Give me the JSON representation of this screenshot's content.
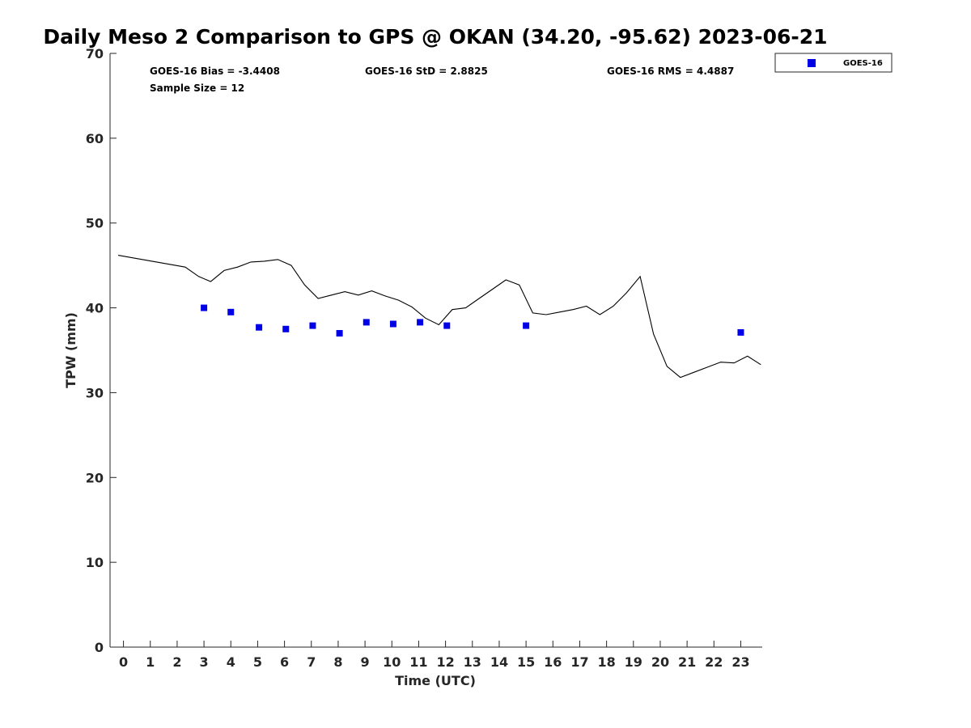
{
  "chart_data": {
    "type": "scatter",
    "title": "Daily Meso 2 Comparison to GPS @ OKAN (34.20, -95.62) 2023-06-21",
    "xlabel": "Time (UTC)",
    "ylabel": "TPW (mm)",
    "xlim": [
      -0.5,
      23.8
    ],
    "ylim": [
      0,
      70
    ],
    "x_ticks": [
      0,
      1,
      2,
      3,
      4,
      5,
      6,
      7,
      8,
      9,
      10,
      11,
      12,
      13,
      14,
      15,
      16,
      17,
      18,
      19,
      20,
      21,
      22,
      23
    ],
    "x_tick_labels": [
      "0",
      "1",
      "2",
      "3",
      "4",
      "5",
      "6",
      "7",
      "8",
      "9",
      "10",
      "11",
      "12",
      "13",
      "14",
      "15",
      "16",
      "17",
      "18",
      "19",
      "20",
      "21",
      "22",
      "23"
    ],
    "y_ticks": [
      0,
      10,
      20,
      30,
      40,
      50,
      60,
      70
    ],
    "y_tick_labels": [
      "0",
      "10",
      "20",
      "30",
      "40",
      "50",
      "60",
      "70"
    ],
    "grid": false,
    "legend_position": "top-right",
    "stats": {
      "bias": "GOES-16 Bias = -3.4408",
      "std": "GOES-16 StD = 2.8825",
      "rms": "GOES-16 RMS = 4.4887",
      "sample": "Sample Size = 12"
    },
    "series": [
      {
        "name": "GOES-16",
        "kind": "scatter",
        "color": "#0000e6",
        "marker": "square",
        "x": [
          3.0,
          4.0,
          5.05,
          6.05,
          7.05,
          8.05,
          9.05,
          10.05,
          11.05,
          12.05,
          15.0,
          23.0
        ],
        "y": [
          40.0,
          39.5,
          37.7,
          37.5,
          37.9,
          37.0,
          38.3,
          38.1,
          38.3,
          37.9,
          37.9,
          37.1
        ]
      },
      {
        "kind": "line",
        "color": "#000000",
        "x": [
          -0.2,
          2.3,
          2.8,
          3.25,
          3.75,
          4.25,
          4.75,
          5.25,
          5.75,
          6.25,
          6.75,
          7.25,
          7.75,
          8.25,
          8.75,
          9.25,
          9.75,
          10.25,
          10.75,
          11.25,
          11.75,
          12.25,
          12.75,
          13.25,
          13.75,
          14.25,
          14.75,
          15.25,
          15.75,
          16.25,
          16.75,
          17.25,
          17.75,
          18.25,
          18.75,
          19.25,
          19.75,
          20.25,
          20.75,
          21.25,
          21.75,
          22.25,
          22.75,
          23.25,
          23.75
        ],
        "y": [
          46.2,
          44.8,
          43.7,
          43.1,
          44.4,
          44.8,
          45.4,
          45.5,
          45.7,
          45.0,
          42.7,
          41.1,
          41.5,
          41.9,
          41.5,
          42.0,
          41.4,
          40.9,
          40.1,
          38.8,
          38.0,
          39.8,
          40.0,
          41.1,
          42.2,
          43.3,
          42.7,
          39.4,
          39.2,
          39.5,
          39.8,
          40.2,
          39.2,
          40.2,
          41.8,
          43.7,
          36.9,
          33.1,
          31.8,
          32.4,
          33.0,
          33.6,
          33.5,
          34.3,
          33.3
        ]
      }
    ]
  }
}
